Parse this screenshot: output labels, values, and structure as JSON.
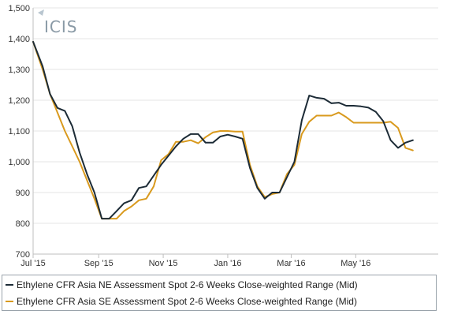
{
  "chart_data": {
    "type": "line",
    "logo_text": "ICIS",
    "ylim": [
      700,
      1500
    ],
    "yticks": [
      700,
      800,
      900,
      1000,
      1100,
      1200,
      1300,
      1400,
      1500
    ],
    "ytick_labels": [
      "700",
      "800",
      "900",
      "1,000",
      "1,100",
      "1,200",
      "1,300",
      "1,400",
      "1,500"
    ],
    "xlim": [
      "2015-07-01",
      "2016-07-18"
    ],
    "xticks": [
      "2015-07-01",
      "2015-09-01",
      "2015-11-01",
      "2016-01-01",
      "2016-03-01",
      "2016-05-01"
    ],
    "xtick_labels": [
      "Jul '15",
      "Sep '15",
      "Nov '15",
      "Jan '16",
      "Mar '16",
      "May '16"
    ],
    "grid": true,
    "legend_position": "bottom",
    "series": [
      {
        "name": "Ethylene CFR Asia NE Assessment Spot 2-6 Weeks Close-weighted Range (Mid)",
        "color": "#1c2b36",
        "x": [
          "2015-07-01",
          "2015-07-10",
          "2015-07-17",
          "2015-07-24",
          "2015-07-31",
          "2015-08-07",
          "2015-08-14",
          "2015-08-21",
          "2015-08-28",
          "2015-09-04",
          "2015-09-11",
          "2015-09-18",
          "2015-09-25",
          "2015-10-02",
          "2015-10-09",
          "2015-10-16",
          "2015-10-23",
          "2015-10-30",
          "2015-11-06",
          "2015-11-13",
          "2015-11-20",
          "2015-11-27",
          "2015-12-04",
          "2015-12-11",
          "2015-12-18",
          "2015-12-25",
          "2016-01-01",
          "2016-01-08",
          "2016-01-15",
          "2016-01-22",
          "2016-01-29",
          "2016-02-05",
          "2016-02-12",
          "2016-02-19",
          "2016-02-26",
          "2016-03-04",
          "2016-03-11",
          "2016-03-18",
          "2016-03-25",
          "2016-04-01",
          "2016-04-08",
          "2016-04-15",
          "2016-04-22",
          "2016-04-29",
          "2016-05-06",
          "2016-05-13",
          "2016-05-20",
          "2016-05-27",
          "2016-06-03",
          "2016-06-10",
          "2016-06-17",
          "2016-06-24"
        ],
        "values": [
          1390,
          1310,
          1220,
          1175,
          1165,
          1115,
          1030,
          960,
          900,
          815,
          815,
          840,
          865,
          875,
          915,
          920,
          955,
          990,
          1020,
          1050,
          1075,
          1090,
          1090,
          1062,
          1062,
          1082,
          1088,
          1082,
          1075,
          980,
          915,
          880,
          900,
          900,
          950,
          1000,
          1135,
          1215,
          1208,
          1205,
          1190,
          1192,
          1182,
          1182,
          1180,
          1176,
          1162,
          1132,
          1070,
          1045,
          1062,
          1070
        ]
      },
      {
        "name": "Ethylene CFR Asia SE Assessment Spot 2-6 Weeks Close-weighted Range (Mid)",
        "color": "#d99a1e",
        "x": [
          "2015-07-01",
          "2015-07-10",
          "2015-07-17",
          "2015-07-24",
          "2015-07-31",
          "2015-08-07",
          "2015-08-14",
          "2015-08-21",
          "2015-08-28",
          "2015-09-04",
          "2015-09-11",
          "2015-09-18",
          "2015-09-25",
          "2015-10-02",
          "2015-10-09",
          "2015-10-16",
          "2015-10-23",
          "2015-10-30",
          "2015-11-06",
          "2015-11-13",
          "2015-11-20",
          "2015-11-27",
          "2015-12-04",
          "2015-12-11",
          "2015-12-18",
          "2015-12-25",
          "2016-01-01",
          "2016-01-08",
          "2016-01-15",
          "2016-01-22",
          "2016-01-29",
          "2016-02-05",
          "2016-02-12",
          "2016-02-19",
          "2016-02-26",
          "2016-03-04",
          "2016-03-11",
          "2016-03-18",
          "2016-03-25",
          "2016-04-01",
          "2016-04-08",
          "2016-04-15",
          "2016-04-22",
          "2016-04-29",
          "2016-05-06",
          "2016-05-13",
          "2016-05-20",
          "2016-05-27",
          "2016-06-03",
          "2016-06-10",
          "2016-06-17",
          "2016-06-24"
        ],
        "values": [
          1390,
          1300,
          1220,
          1160,
          1100,
          1050,
          1000,
          940,
          880,
          815,
          815,
          815,
          840,
          855,
          875,
          880,
          920,
          1005,
          1025,
          1065,
          1065,
          1070,
          1060,
          1080,
          1095,
          1100,
          1100,
          1098,
          1098,
          990,
          920,
          885,
          895,
          900,
          960,
          990,
          1090,
          1130,
          1150,
          1150,
          1150,
          1160,
          1145,
          1127,
          1127,
          1127,
          1127,
          1127,
          1130,
          1110,
          1045,
          1037
        ]
      }
    ]
  }
}
